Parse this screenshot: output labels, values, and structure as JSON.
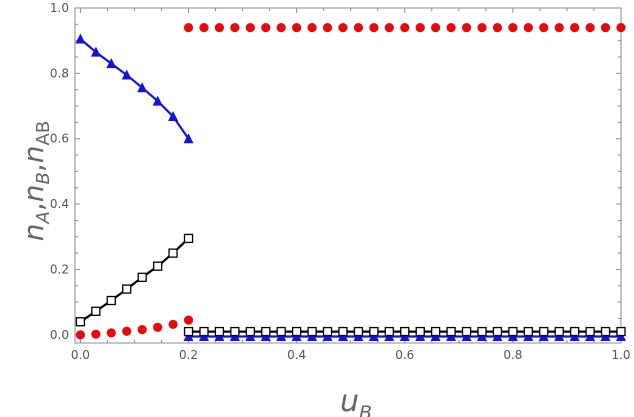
{
  "chart_data": {
    "type": "scatter",
    "xlim": [
      0.0,
      1.0
    ],
    "ylim": [
      0.0,
      1.0
    ],
    "xticks": [
      "0.0",
      "0.2",
      "0.4",
      "0.6",
      "0.8",
      "1.0"
    ],
    "yticks": [
      "0.0",
      "0.2",
      "0.4",
      "0.6",
      "0.8",
      "1.0"
    ],
    "xlabel": "u_B",
    "ylabel": "n_A, n_B, n_AB",
    "grid": false,
    "series": [
      {
        "marker": "filled-circle",
        "color": "#e8090c",
        "segments": [
          {
            "line": false,
            "x": [
              0.0,
              0.0286,
              0.0571,
              0.0857,
              0.1143,
              0.1429,
              0.1714,
              0.2
            ],
            "y": [
              0.0,
              0.002,
              0.006,
              0.011,
              0.016,
              0.023,
              0.032,
              0.045
            ]
          },
          {
            "line": false,
            "x": [
              0.2,
              0.2286,
              0.2571,
              0.2857,
              0.3143,
              0.3429,
              0.3714,
              0.4,
              0.4286,
              0.4571,
              0.4857,
              0.5143,
              0.5429,
              0.5714,
              0.6,
              0.6286,
              0.6571,
              0.6857,
              0.7143,
              0.7429,
              0.7714,
              0.8,
              0.8286,
              0.8571,
              0.8857,
              0.9143,
              0.9429,
              0.9714,
              1.0
            ],
            "y": [
              0.94,
              0.94,
              0.94,
              0.94,
              0.94,
              0.94,
              0.94,
              0.94,
              0.94,
              0.94,
              0.94,
              0.94,
              0.94,
              0.94,
              0.94,
              0.94,
              0.94,
              0.94,
              0.94,
              0.94,
              0.94,
              0.94,
              0.94,
              0.94,
              0.94,
              0.94,
              0.94,
              0.94,
              0.94
            ]
          }
        ]
      },
      {
        "marker": "filled-triangle",
        "color": "#1414d8",
        "segments": [
          {
            "line": true,
            "x": [
              0.0,
              0.0286,
              0.0571,
              0.0857,
              0.1143,
              0.1429,
              0.1714,
              0.2
            ],
            "y": [
              0.905,
              0.865,
              0.83,
              0.795,
              0.756,
              0.715,
              0.668,
              0.6
            ]
          },
          {
            "line": true,
            "x": [
              0.2,
              0.2286,
              0.2571,
              0.2857,
              0.3143,
              0.3429,
              0.3714,
              0.4,
              0.4286,
              0.4571,
              0.4857,
              0.5143,
              0.5429,
              0.5714,
              0.6,
              0.6286,
              0.6571,
              0.6857,
              0.7143,
              0.7429,
              0.7714,
              0.8,
              0.8286,
              0.8571,
              0.8857,
              0.9143,
              0.9429,
              0.9714,
              1.0
            ],
            "y": [
              -0.005,
              -0.005,
              -0.005,
              -0.005,
              -0.005,
              -0.005,
              -0.005,
              -0.005,
              -0.005,
              -0.005,
              -0.005,
              -0.005,
              -0.005,
              -0.005,
              -0.005,
              -0.005,
              -0.005,
              -0.005,
              -0.005,
              -0.005,
              -0.005,
              -0.005,
              -0.005,
              -0.005,
              -0.005,
              -0.005,
              -0.005,
              -0.005,
              -0.005
            ]
          }
        ]
      },
      {
        "marker": "open-square",
        "color": "#000000",
        "segments": [
          {
            "line": true,
            "x": [
              0.0,
              0.0286,
              0.0571,
              0.0857,
              0.1143,
              0.1429,
              0.1714,
              0.2
            ],
            "y": [
              0.04,
              0.072,
              0.105,
              0.14,
              0.176,
              0.21,
              0.25,
              0.295
            ]
          },
          {
            "line": true,
            "x": [
              0.2,
              0.2286,
              0.2571,
              0.2857,
              0.3143,
              0.3429,
              0.3714,
              0.4,
              0.4286,
              0.4571,
              0.4857,
              0.5143,
              0.5429,
              0.5714,
              0.6,
              0.6286,
              0.6571,
              0.6857,
              0.7143,
              0.7429,
              0.7714,
              0.8,
              0.8286,
              0.8571,
              0.8857,
              0.9143,
              0.9429,
              0.9714,
              1.0
            ],
            "y": [
              0.01,
              0.01,
              0.01,
              0.01,
              0.01,
              0.01,
              0.01,
              0.01,
              0.01,
              0.01,
              0.01,
              0.01,
              0.01,
              0.01,
              0.01,
              0.01,
              0.01,
              0.01,
              0.01,
              0.01,
              0.01,
              0.01,
              0.01,
              0.01,
              0.01,
              0.01,
              0.01,
              0.01,
              0.01
            ]
          }
        ]
      }
    ]
  }
}
